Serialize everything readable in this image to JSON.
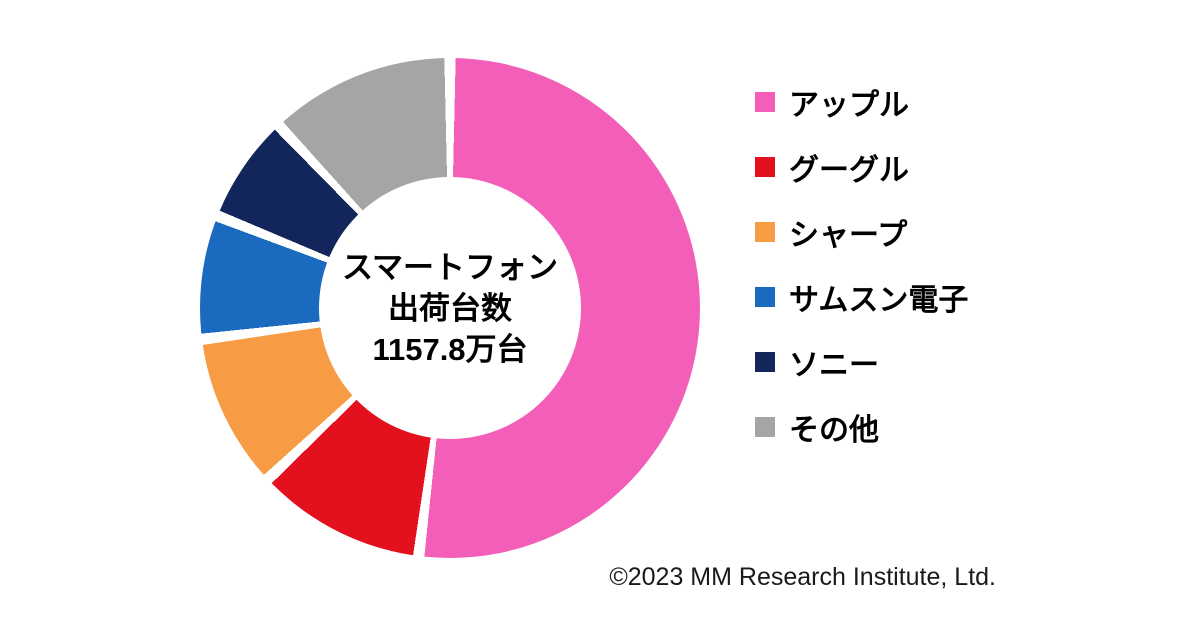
{
  "chart_data": {
    "type": "pie",
    "donut": true,
    "legend_position": "right",
    "value_note": "percent share estimated from arc angles; no numeric labels shown on chart",
    "center_label": {
      "line1": "スマートフォン",
      "line2": "出荷台数",
      "line3": "1157.8万台"
    },
    "segments": [
      {
        "label": "アップル",
        "value": 52,
        "color": "#F25EB8"
      },
      {
        "label": "グーグル",
        "value": 11,
        "color": "#E3101E"
      },
      {
        "label": "シャープ",
        "value": 10,
        "color": "#F79B44"
      },
      {
        "label": "サムスン電子",
        "value": 8,
        "color": "#1A6BBF"
      },
      {
        "label": "ソニー",
        "value": 7,
        "color": "#12265C"
      },
      {
        "label": "その他",
        "value": 12,
        "color": "#A5A5A5"
      }
    ],
    "separator_color": "#FFFFFF"
  },
  "footer": {
    "copyright": "©2023 MM Research Institute, Ltd."
  }
}
